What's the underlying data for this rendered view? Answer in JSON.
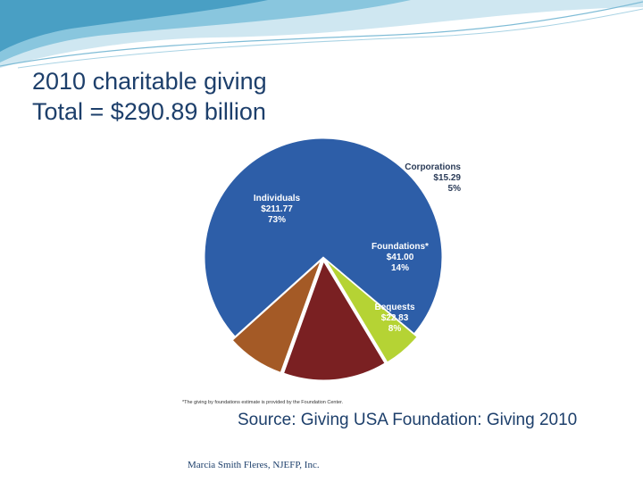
{
  "slide": {
    "title_line1": "2010 charitable giving",
    "title_line2": "Total = $290.89 billion",
    "source": "Source: Giving USA Foundation: Giving 2010",
    "footer": "Marcia Smith Fleres, NJEFP, Inc."
  },
  "chart_data": {
    "type": "pie",
    "title": "",
    "slices": [
      {
        "name": "Individuals",
        "value": 211.77,
        "value_label": "$211.77",
        "percent_label": "73%",
        "color": "#2d5ea8"
      },
      {
        "name": "Corporations",
        "value": 15.29,
        "value_label": "$15.29",
        "percent_label": "5%",
        "color": "#b5d334"
      },
      {
        "name": "Foundations*",
        "value": 41.0,
        "value_label": "$41.00",
        "percent_label": "14%",
        "color": "#7a2022"
      },
      {
        "name": "Bequests",
        "value": 22.83,
        "value_label": "$22.83",
        "percent_label": "8%",
        "color": "#a45a26"
      }
    ],
    "footnote": "*The giving by foundations estimate is provided by the Foundation Center."
  },
  "colors": {
    "title_text": "#1d3f6b",
    "header_wave_light": "#cfe7f1",
    "header_wave_mid": "#89c6de",
    "header_wave_dark": "#3e98c0",
    "label_dark": "#2b3c58",
    "label_light": "#ffffff"
  }
}
